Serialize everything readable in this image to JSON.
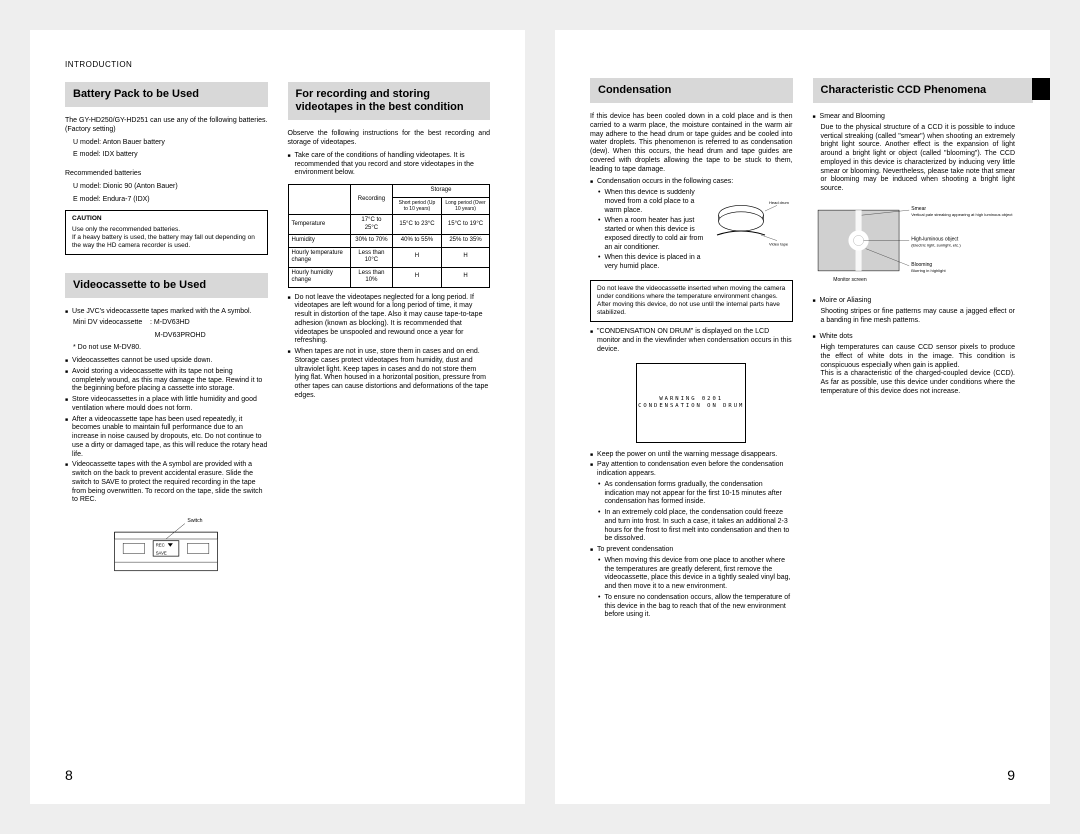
{
  "section_header": "INTRODUCTION",
  "left_page_num": "8",
  "right_page_num": "9",
  "headings": {
    "battery": "Battery Pack to be Used",
    "videocassette": "Videocassette to be Used",
    "recording": "For recording and storing videotapes in the best condition",
    "condensation": "Condensation",
    "ccd": "Characteristic CCD Phenomena"
  },
  "battery": {
    "intro": "The GY-HD250/GY-HD251 can use any of the following batteries. (Factory setting)",
    "u_model": "U model: Anton Bauer battery",
    "e_model": "E model: IDX battery",
    "rec_label": "Recommended batteries",
    "rec_u": "U model: Dionic 90 (Anton Bauer)",
    "rec_e": "E model: Endura-7 (IDX)",
    "caution_label": "CAUTION",
    "caution_text": "Use only the recommended batteries.\nIf a heavy battery is used, the battery may fall out depending on the way the HD camera recorder is used."
  },
  "videocassette": {
    "b1": "Use JVC's videocassette tapes marked with the A symbol.",
    "b1a": "Mini DV videocassette    : M-DV63HD",
    "b1b": "                                          M-DV63PROHD",
    "b1c": "* Do not use M-DV80.",
    "b2": "Videocassettes cannot be used upside down.",
    "b3": "Avoid storing a videocassette with its tape not being completely wound, as this may damage the tape. Rewind it to the beginning before placing a cassette into storage.",
    "b4": "Store videocassettes in a place with little humidity and good ventilation where mould does not form.",
    "b5": "After a videocassette tape has been used repeatedly, it becomes unable to maintain full performance due to an increase in noise caused by dropouts, etc. Do not continue to use a dirty or damaged tape, as this will reduce the rotary head life.",
    "b6": "Videocassette tapes with the A     symbol are provided with a switch on the back to prevent accidental erasure. Slide the switch to SAVE to protect the required recording in the tape from being overwritten. To record on the tape, slide the switch to REC.",
    "switch_label": "Switch",
    "rec_label": "REC",
    "save_label": "SAVE"
  },
  "recording": {
    "intro": "Observe the following instructions for the best recording and storage of videotapes.",
    "b1": "Take care of the conditions of handling videotapes. It is recommended that you record and store videotapes in the environment below.",
    "table": {
      "storage": "Storage",
      "recording_col": "Recording",
      "short": "Short period (Up to 10 years)",
      "long": "Long period (Over 10 years)",
      "rows": [
        [
          "Temperature",
          "17°C to 25°C",
          "15°C to 23°C",
          "15°C to 19°C"
        ],
        [
          "Humidity",
          "30% to 70%",
          "40% to 55%",
          "25% to 35%"
        ],
        [
          "Hourly temperature change",
          "Less than 10°C",
          "H",
          "H"
        ],
        [
          "Hourly humidity change",
          "Less than 10%",
          "H",
          "H"
        ]
      ]
    },
    "b2": "Do not leave the videotapes neglected for a long period. If videotapes are left wound for a long period of time, it may result in distortion of the tape. Also it may cause tape-to-tape adhesion (known as blocking). It is recommended that videotapes be unspooled and rewound once a year for refreshing.",
    "b3": "When tapes are not in use, store them in cases and on end. Storage cases protect videotapes from humidity, dust and ultraviolet light. Keep tapes in cases and do not store them lying flat. When housed in a horizontal position, pressure from other tapes can cause distortions and deformations of the tape edges."
  },
  "condensation": {
    "p1": "If this device has been cooled down in a cold place and is then carried to a warm place, the moisture contained in the warm air may adhere to the head drum or tape guides and be cooled into water droplets. This phenomenon is referred to as condensation (dew). When this occurs, the head drum and tape guides are covered with droplets allowing the tape to be stuck to them, leading to tape damage.",
    "b_intro": "Condensation occurs in the following cases:",
    "sb1": "When this device is suddenly moved from a cold place to a warm place.",
    "sb2": "When a room heater has just started or when this device is exposed directly to cold air from an air conditioner.",
    "sb3": "When this device is placed in a very humid place.",
    "drum_head": "Head drum",
    "drum_tape": "Video tape",
    "memo1": "Do not leave the videocassette inserted when moving the camera under conditions where the temperature environment changes.\nAfter moving this device, do not use until the internal parts have stabilized.",
    "lcd_intro": "\"CONDENSATION ON DRUM\" is displayed on the LCD monitor and in the viewfinder when condensation occurs in this device.",
    "lcd_line1": "WARNING 0201",
    "lcd_line2": "CONDENSATION ON DRUM",
    "b_keep": "Keep the power on until the warning message disappears.",
    "b_pay": "Pay attention to condensation even before the condensation indication appears.",
    "sb_grad": "As condensation forms gradually, the condensation indication may not appear for the first 10-15 minutes after condensation has formed inside.",
    "sb_cold": "In an extremely cold place, the condensation could freeze and turn into frost. In such a case, it takes an additional 2-3 hours for the frost to first melt into condensation and then to be dissolved.",
    "b_prevent": "To prevent condensation",
    "sb_move": "When moving this device from one place to another where the temperatures are greatly deferent, first remove the videocassette, place this device in a tightly sealed vinyl bag, and then move it to a new environment.",
    "sb_ensure": "To ensure no condensation occurs, allow the temperature of this device in the bag to reach that of the new environment before using it."
  },
  "ccd": {
    "smear_h": "Smear and Blooming",
    "smear_p": "Due to the physical structure of a CCD it is possible to induce vertical streaking (called \"smear\") when shooting an extremely bright light source. Another effect is the expansion of light around a bright light or object (called \"blooming\"). The CCD employed in this device is characterized by inducing very little smear or blooming. Nevertheless, please take note that smear or blooming may be induced when shooting a bright light source.",
    "diag_smear": "Smear",
    "diag_smear_sub": "Vertical pale streaking appearing at high luminous object",
    "diag_high": "High-luminous object",
    "diag_high_sub": "(Electric light, sunlight, etc.)",
    "diag_bloom": "Blooming",
    "diag_bloom_sub": "Blurring in highlight",
    "diag_monitor": "Monitor screen",
    "moire_h": "Moire or Aliasing",
    "moire_p": "Shooting stripes or fine patterns may cause a jagged effect or a banding in fine mesh patterns.",
    "white_h": "White dots",
    "white_p": "High temperatures can cause CCD sensor pixels to produce the effect of white dots in the image. This condition is conspicuous especially when gain is applied.\nThis is a characteristic of the charged-coupled device (CCD). As far as possible, use this device under conditions where the temperature of this device does not increase."
  }
}
